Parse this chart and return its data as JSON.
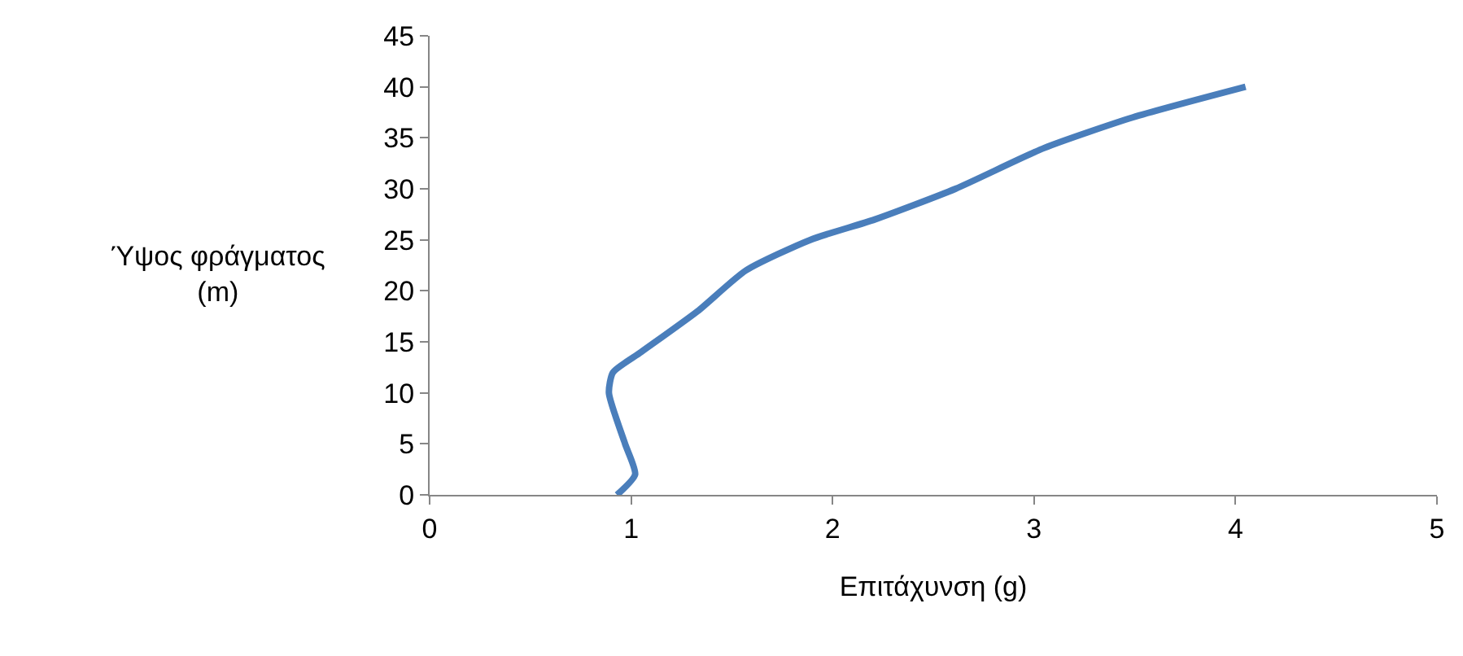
{
  "chart_data": {
    "type": "line",
    "xlabel": "Επιτάχυνση (g)",
    "ylabel": "Ύψος φράγματος\n(m)",
    "series": [
      {
        "color": "#4a7ebb",
        "x": [
          0.93,
          1.02,
          0.97,
          0.89,
          0.91,
          1.05,
          1.33,
          1.57,
          1.89,
          2.21,
          2.61,
          3.05,
          3.49,
          4.05
        ],
        "values": [
          0,
          2,
          5,
          10,
          12,
          14,
          18,
          22,
          25,
          27,
          30,
          34,
          37,
          40
        ]
      }
    ],
    "xlim": [
      0,
      5
    ],
    "xticks": [
      0,
      1,
      2,
      3,
      4,
      5
    ],
    "ylim": [
      0,
      45
    ],
    "yticks": [
      0,
      5,
      10,
      15,
      20,
      25,
      30,
      35,
      40,
      45
    ],
    "marker": "none",
    "line_style": "solid"
  }
}
